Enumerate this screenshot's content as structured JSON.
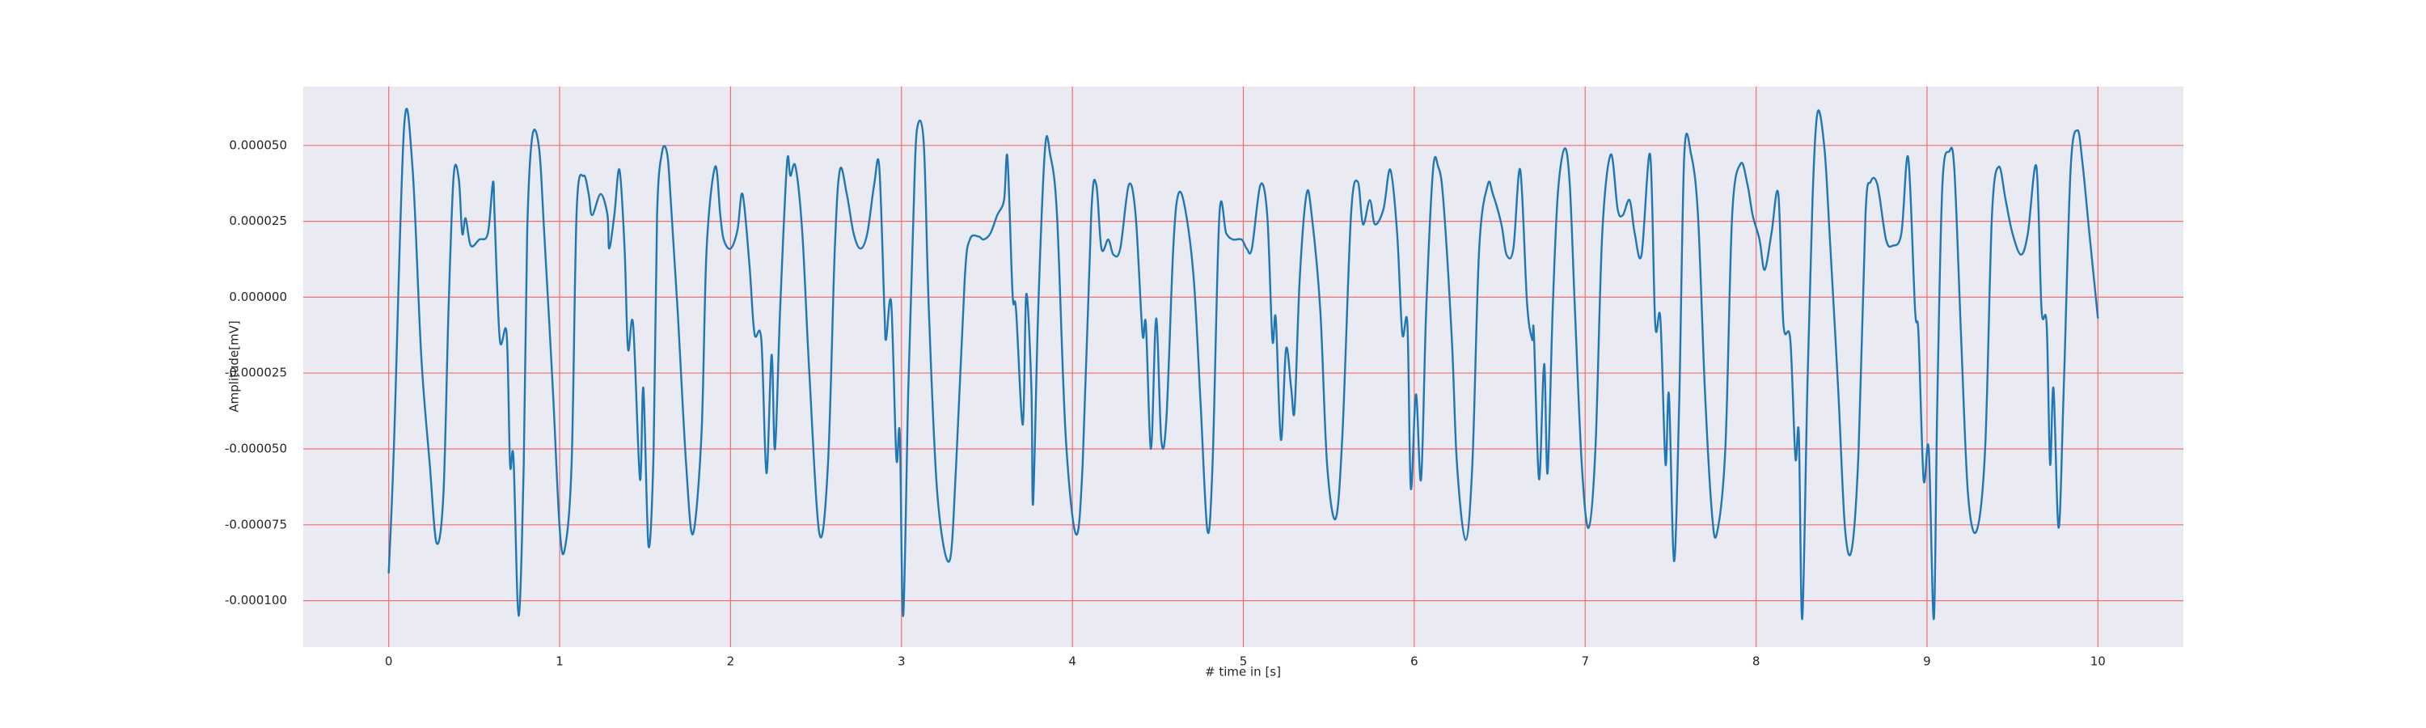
{
  "chart_data": {
    "type": "line",
    "xlabel": "# time in [s]",
    "ylabel": "Amplitude[mV]",
    "x": [
      0,
      0.03,
      0.09,
      0.14,
      0.19,
      0.24,
      0.28,
      0.32,
      0.35,
      0.38,
      0.41,
      0.43,
      0.45,
      0.48,
      0.53,
      0.58,
      0.61,
      0.62,
      0.65,
      0.69,
      0.71,
      0.73,
      0.76,
      0.79,
      0.81,
      0.84,
      0.88,
      0.91,
      0.96,
      1.0,
      1.03,
      1.07,
      1.1,
      1.14,
      1.17,
      1.19,
      1.24,
      1.28,
      1.29,
      1.32,
      1.35,
      1.38,
      1.4,
      1.43,
      1.47,
      1.49,
      1.52,
      1.55,
      1.57,
      1.6,
      1.63,
      1.65,
      1.69,
      1.74,
      1.78,
      1.83,
      1.86,
      1.91,
      1.94,
      1.96,
      2.0,
      2.04,
      2.07,
      2.11,
      2.14,
      2.18,
      2.21,
      2.24,
      2.26,
      2.29,
      2.33,
      2.35,
      2.38,
      2.42,
      2.46,
      2.52,
      2.57,
      2.61,
      2.64,
      2.68,
      2.72,
      2.76,
      2.8,
      2.84,
      2.87,
      2.9,
      2.91,
      2.94,
      2.97,
      2.99,
      3.01,
      3.04,
      3.07,
      3.09,
      3.13,
      3.16,
      3.21,
      3.28,
      3.32,
      3.37,
      3.4,
      3.45,
      3.48,
      3.52,
      3.56,
      3.6,
      3.62,
      3.65,
      3.67,
      3.71,
      3.73,
      3.76,
      3.77,
      3.8,
      3.84,
      3.87,
      3.91,
      3.96,
      4.02,
      4.06,
      4.11,
      4.14,
      4.17,
      4.21,
      4.24,
      4.28,
      4.33,
      4.37,
      4.41,
      4.43,
      4.46,
      4.49,
      4.52,
      4.55,
      4.59,
      4.62,
      4.66,
      4.71,
      4.75,
      4.79,
      4.82,
      4.86,
      4.9,
      4.94,
      4.99,
      5.02,
      5.05,
      5.1,
      5.14,
      5.17,
      5.19,
      5.22,
      5.25,
      5.28,
      5.3,
      5.33,
      5.37,
      5.4,
      5.45,
      5.49,
      5.54,
      5.58,
      5.63,
      5.67,
      5.7,
      5.74,
      5.77,
      5.82,
      5.86,
      5.9,
      5.93,
      5.96,
      5.98,
      6.01,
      6.04,
      6.07,
      6.11,
      6.14,
      6.17,
      6.22,
      6.25,
      6.3,
      6.34,
      6.38,
      6.43,
      6.46,
      6.51,
      6.54,
      6.58,
      6.62,
      6.66,
      6.69,
      6.7,
      6.73,
      6.76,
      6.78,
      6.81,
      6.84,
      6.88,
      6.91,
      6.94,
      6.98,
      7.02,
      7.06,
      7.1,
      7.15,
      7.19,
      7.22,
      7.26,
      7.29,
      7.33,
      7.38,
      7.41,
      7.44,
      7.47,
      7.49,
      7.52,
      7.55,
      7.58,
      7.62,
      7.66,
      7.7,
      7.74,
      7.77,
      7.82,
      7.86,
      7.91,
      7.95,
      7.98,
      8.02,
      8.05,
      8.09,
      8.13,
      8.16,
      8.2,
      8.23,
      8.25,
      8.27,
      8.3,
      8.33,
      8.36,
      8.4,
      8.43,
      8.48,
      8.52,
      8.56,
      8.6,
      8.64,
      8.67,
      8.71,
      8.76,
      8.8,
      8.85,
      8.89,
      8.93,
      8.95,
      8.98,
      9.01,
      9.04,
      9.06,
      9.09,
      9.13,
      9.16,
      9.2,
      9.24,
      9.29,
      9.34,
      9.38,
      9.42,
      9.46,
      9.5,
      9.55,
      9.59,
      9.64,
      9.67,
      9.7,
      9.72,
      9.74,
      9.77,
      9.8,
      9.84,
      9.88,
      9.91,
      9.95,
      10.0
    ],
    "values": [
      -9.1e-05,
      -5e-05,
      5.6e-05,
      4.2e-05,
      -1.9e-05,
      -5.5e-05,
      -8.1e-05,
      -6.5e-05,
      -4e-06,
      4e-05,
      3.9e-05,
      2.1e-05,
      2.6e-05,
      1.7e-05,
      1.9e-05,
      2.1e-05,
      3.8e-05,
      2.6e-05,
      -1.4e-05,
      -1.2e-05,
      -5.5e-05,
      -5.3e-05,
      -0.000105,
      -5.5e-05,
      2.1e-05,
      5.3e-05,
      4.9e-05,
      2.1e-05,
      -3e-05,
      -7.6e-05,
      -8.3e-05,
      -5.5e-05,
      2.9e-05,
      4e-05,
      3.4e-05,
      2.7e-05,
      3.4e-05,
      2.7e-05,
      1.6e-05,
      2.7e-05,
      4.2e-05,
      1.6e-05,
      -1.7e-05,
      -9e-06,
      -6e-05,
      -3e-05,
      -8.2e-05,
      -5e-05,
      2.7e-05,
      4.8e-05,
      4.7e-05,
      3.2e-05,
      -4e-06,
      -5.5e-05,
      -7.8e-05,
      -4.5e-05,
      1.6e-05,
      4.3e-05,
      2.7e-05,
      1.9e-05,
      1.6e-05,
      2.2e-05,
      3.4e-05,
      1.1e-05,
      -1.2e-05,
      -1.4e-05,
      -5.8e-05,
      -1.9e-05,
      -5e-05,
      -4e-06,
      4.4e-05,
      4e-05,
      4.3e-05,
      2.1e-05,
      -2.4e-05,
      -7.8e-05,
      -5.5e-05,
      1.6e-05,
      4.2e-05,
      3.4e-05,
      2.1e-05,
      1.6e-05,
      2.1e-05,
      3.7e-05,
      4.3e-05,
      -4e-06,
      -1.4e-05,
      -2e-06,
      -5.3e-05,
      -4.5e-05,
      -0.000105,
      -3e-05,
      2.7e-05,
      5.5e-05,
      5.1e-05,
      -4e-06,
      -6.5e-05,
      -8.7e-05,
      -5.5e-05,
      6e-06,
      1.9e-05,
      2e-05,
      1.9e-05,
      2.1e-05,
      2.7e-05,
      3.2e-05,
      4.6e-05,
      1e-06,
      -4e-06,
      -4.2e-05,
      1e-06,
      -3e-05,
      -6.8e-05,
      -4e-06,
      4.9e-05,
      4.7e-05,
      2.7e-05,
      -4.5e-05,
      -7.8e-05,
      -5.5e-05,
      2.7e-05,
      3.7e-05,
      1.6e-05,
      1.9e-05,
      1.4e-05,
      1.6e-05,
      3.7e-05,
      2.7e-05,
      -1.2e-05,
      -9e-06,
      -5e-05,
      -7e-06,
      -4.7e-05,
      -4e-05,
      1.6e-05,
      3.4e-05,
      2.9e-05,
      6e-06,
      -3.5e-05,
      -7.7e-05,
      -5.5e-05,
      2.7e-05,
      2.1e-05,
      1.9e-05,
      1.9e-05,
      1.6e-05,
      1.6e-05,
      3.7e-05,
      2.7e-05,
      -1.4e-05,
      -7e-06,
      -4.7e-05,
      -1.7e-05,
      -3e-05,
      -3.7e-05,
      6e-06,
      3.4e-05,
      2.7e-05,
      -4e-06,
      -5.5e-05,
      -7.3e-05,
      -4.5e-05,
      2.7e-05,
      3.8e-05,
      2.4e-05,
      3.2e-05,
      2.4e-05,
      2.9e-05,
      4.2e-05,
      2.1e-05,
      -1.2e-05,
      -9e-06,
      -6.3e-05,
      -3.2e-05,
      -6e-05,
      -4e-06,
      4.2e-05,
      4.3e-05,
      3.2e-05,
      -1.4e-05,
      -5.5e-05,
      -8e-05,
      -5.5e-05,
      1.6e-05,
      3.7e-05,
      3.4e-05,
      2.4e-05,
      1.4e-05,
      1.6e-05,
      4.2e-05,
      -2e-06,
      -1.4e-05,
      -1.2e-05,
      -6e-05,
      -2.2e-05,
      -5.8e-05,
      -4e-06,
      3.4e-05,
      4.9e-05,
      3.7e-05,
      -4e-06,
      -5.5e-05,
      -7.6e-05,
      -5e-05,
      2.1e-05,
      4.7e-05,
      2.9e-05,
      2.7e-05,
      3.2e-05,
      2.1e-05,
      1.4e-05,
      4.7e-05,
      -9e-06,
      -7e-06,
      -5.5e-05,
      -3.2e-05,
      -8.7e-05,
      -3.5e-05,
      4.7e-05,
      4.7e-05,
      2.7e-05,
      -3e-05,
      -7e-05,
      -7.8e-05,
      -5e-05,
      2.7e-05,
      4.4e-05,
      3.7e-05,
      2.7e-05,
      1.9e-05,
      9e-06,
      2.1e-05,
      3.4e-05,
      -9e-06,
      -1.4e-05,
      -5.3e-05,
      -4.5e-05,
      -0.000106,
      -3e-05,
      3.2e-05,
      6.1e-05,
      4.9e-05,
      2.1e-05,
      -3e-05,
      -7.6e-05,
      -8.3e-05,
      -5e-05,
      2.7e-05,
      3.8e-05,
      3.7e-05,
      1.9e-05,
      1.7e-05,
      2.1e-05,
      4.6e-05,
      -4e-06,
      -1.2e-05,
      -6e-05,
      -5e-05,
      -0.000106,
      -3.5e-05,
      3.7e-05,
      4.8e-05,
      4.2e-05,
      -1.4e-05,
      -6.5e-05,
      -7.7e-05,
      -5e-05,
      2.7e-05,
      4.3e-05,
      3.2e-05,
      2.1e-05,
      1.4e-05,
      2.1e-05,
      4.3e-05,
      -4e-06,
      -9e-06,
      -5.5e-05,
      -3e-05,
      -7.6e-05,
      -3e-05,
      4.2e-05,
      5.5e-05,
      4.4e-05,
      2.1e-05,
      -7e-06
    ],
    "color": "#1f77b4",
    "xlim": [
      -0.5,
      10.5
    ],
    "xticks": [
      0,
      1,
      2,
      3,
      4,
      5,
      6,
      7,
      8,
      9,
      10
    ],
    "ylim": [
      -0.0001153,
      6.94e-05
    ],
    "yticks": [
      {
        "value": -0.0001,
        "label": "-0.000100"
      },
      {
        "value": -7.5e-05,
        "label": "-0.000075"
      },
      {
        "value": -5e-05,
        "label": "-0.000050"
      },
      {
        "value": -2.5e-05,
        "label": "-0.000025"
      },
      {
        "value": 0,
        "label": "0.000000"
      },
      {
        "value": 2.5e-05,
        "label": "0.000025"
      },
      {
        "value": 5e-05,
        "label": "0.000050"
      }
    ],
    "grid": true,
    "grid_color": "#f07070"
  }
}
